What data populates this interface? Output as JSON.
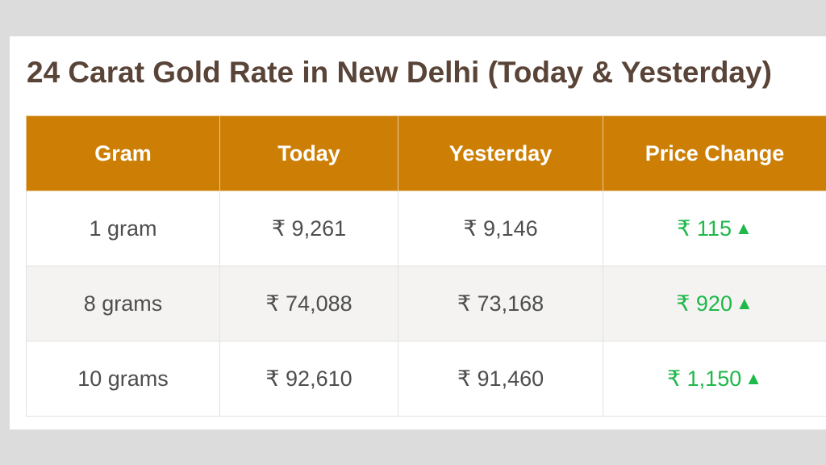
{
  "page": {
    "title": "24 Carat Gold Rate in New Delhi (Today & Yesterday)"
  },
  "table": {
    "headers": [
      "Gram",
      "Today",
      "Yesterday",
      "Price Change"
    ],
    "rows": [
      {
        "gram": "1 gram",
        "today": "₹ 9,261",
        "yesterday": "₹ 9,146",
        "change": "₹ 115"
      },
      {
        "gram": "8 grams",
        "today": "₹ 74,088",
        "yesterday": "₹ 73,168",
        "change": "₹ 920"
      },
      {
        "gram": "10 grams",
        "today": "₹ 92,610",
        "yesterday": "₹ 91,460",
        "change": "₹ 1,150"
      }
    ]
  },
  "icons": {
    "change_up": "up-triangle-icon"
  },
  "colors": {
    "header_bg": "#cd7f05",
    "title_text": "#5a4438",
    "change_up": "#1fb84a",
    "stripe_row": "#f4f3f2"
  }
}
